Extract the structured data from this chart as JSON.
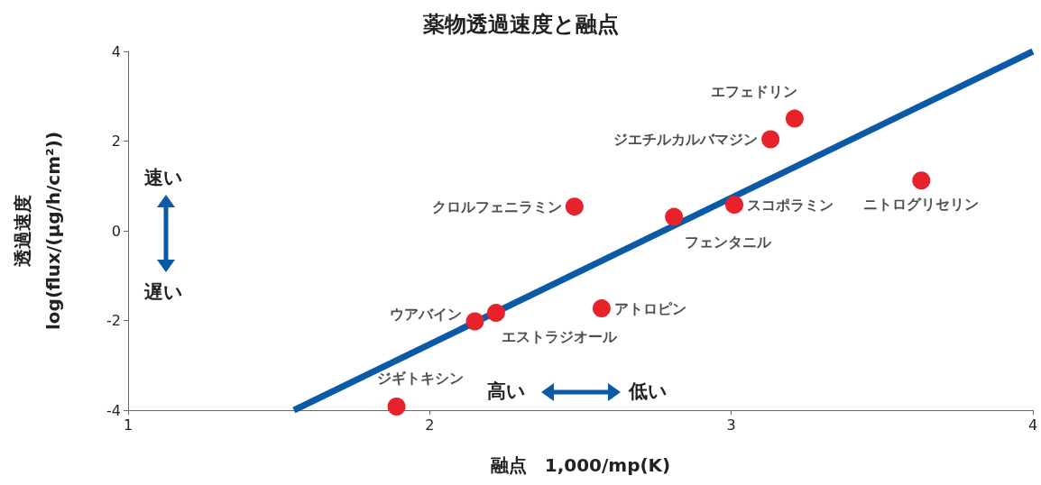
{
  "chart_data": {
    "type": "scatter",
    "title": "薬物透過速度と融点",
    "xlabel": "融点　1,000/mp(K)",
    "ylabel": "透過速度\nlog(flux/(μg/h/cm²))",
    "xlim": [
      1,
      4
    ],
    "xticks": [
      1,
      2,
      3,
      4
    ],
    "ylim": [
      -4,
      4
    ],
    "yticks": [
      -4,
      -2,
      0,
      2,
      4
    ],
    "grid": false,
    "marker": "circle",
    "series": [
      {
        "color": "#e8222a",
        "x": [
          3.21,
          3.13,
          3.63,
          2.48,
          2.81,
          3.01,
          2.57,
          2.22,
          2.15,
          1.89
        ],
        "values": [
          2.5,
          2.04,
          1.12,
          0.54,
          0.31,
          0.58,
          -1.73,
          -1.83,
          -2.02,
          -3.92
        ]
      },
      {
        "type": "line",
        "color": "#0a5aa8",
        "x": [
          1.55,
          4
        ],
        "values": [
          -4,
          4
        ],
        "marker": "none",
        "line_style": "solid"
      }
    ],
    "annotations": [
      {
        "text": "エフェドリン",
        "x": 3.21,
        "y": 2.5
      },
      {
        "text": "ジエチルカルバマジン",
        "x": 3.13,
        "y": 2.04
      },
      {
        "text": "ニトログリセリン",
        "x": 3.63,
        "y": 1.12
      },
      {
        "text": "クロルフェニラミン",
        "x": 2.48,
        "y": 0.54
      },
      {
        "text": "フェンタニル",
        "x": 2.81,
        "y": 0.31
      },
      {
        "text": "スコポラミン",
        "x": 3.01,
        "y": 0.58
      },
      {
        "text": "アトロピン",
        "x": 2.57,
        "y": -1.73
      },
      {
        "text": "エストラジオール",
        "x": 2.22,
        "y": -1.83
      },
      {
        "text": "ウアバイン",
        "x": 2.15,
        "y": -2.02
      },
      {
        "text": "ジギトキシン",
        "x": 1.89,
        "y": -3.92
      },
      "速い",
      "遅い",
      "高い",
      "低い"
    ]
  }
}
